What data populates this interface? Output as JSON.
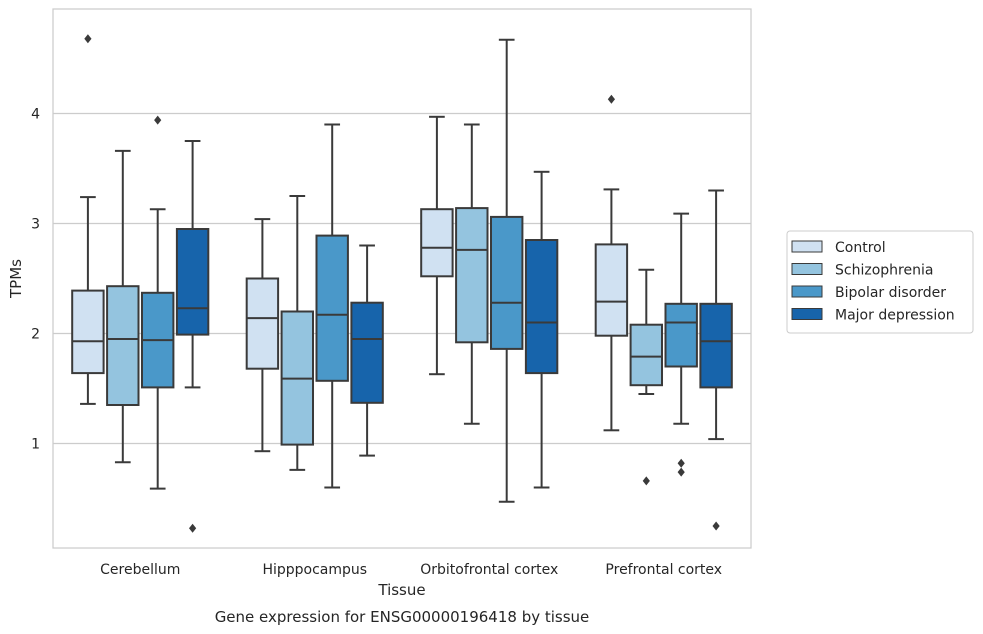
{
  "chart_data": {
    "type": "box",
    "title": "",
    "caption": "Gene expression for ENSG00000196418 by tissue",
    "xlabel": "Tissue",
    "ylabel": "TPMs",
    "ylim": [
      0.05,
      4.95
    ],
    "yticks": [
      1,
      2,
      3,
      4
    ],
    "grid": "horizontal",
    "legend_position": "right",
    "categories": [
      "Cerebellum",
      "Hipppocampus",
      "Orbitofrontal cortex",
      "Prefrontal cortex"
    ],
    "series": [
      {
        "name": "Control",
        "color": "#d0e1f2",
        "boxes": [
          {
            "whislo": 1.36,
            "q1": 1.64,
            "med": 1.93,
            "q3": 2.39,
            "whishi": 3.24,
            "fliers": [
              4.68
            ]
          },
          {
            "whislo": 0.93,
            "q1": 1.68,
            "med": 2.14,
            "q3": 2.5,
            "whishi": 3.04,
            "fliers": []
          },
          {
            "whislo": 1.63,
            "q1": 2.52,
            "med": 2.78,
            "q3": 3.13,
            "whishi": 3.97,
            "fliers": []
          },
          {
            "whislo": 1.12,
            "q1": 1.98,
            "med": 2.29,
            "q3": 2.81,
            "whishi": 3.31,
            "fliers": [
              4.13
            ]
          }
        ]
      },
      {
        "name": "Schizophrenia",
        "color": "#94c4df",
        "boxes": [
          {
            "whislo": 0.83,
            "q1": 1.35,
            "med": 1.95,
            "q3": 2.43,
            "whishi": 3.66,
            "fliers": []
          },
          {
            "whislo": 0.76,
            "q1": 0.99,
            "med": 1.59,
            "q3": 2.2,
            "whishi": 3.25,
            "fliers": []
          },
          {
            "whislo": 1.18,
            "q1": 1.92,
            "med": 2.76,
            "q3": 3.14,
            "whishi": 3.9,
            "fliers": []
          },
          {
            "whislo": 1.45,
            "q1": 1.53,
            "med": 1.79,
            "q3": 2.08,
            "whishi": 2.58,
            "fliers": [
              0.66
            ]
          }
        ]
      },
      {
        "name": "Bipolar disorder",
        "color": "#4a98c9",
        "boxes": [
          {
            "whislo": 0.59,
            "q1": 1.51,
            "med": 1.94,
            "q3": 2.37,
            "whishi": 3.13,
            "fliers": [
              3.94
            ]
          },
          {
            "whislo": 0.6,
            "q1": 1.57,
            "med": 2.17,
            "q3": 2.89,
            "whishi": 3.9,
            "fliers": []
          },
          {
            "whislo": 0.47,
            "q1": 1.86,
            "med": 2.28,
            "q3": 3.06,
            "whishi": 4.67,
            "fliers": []
          },
          {
            "whislo": 1.18,
            "q1": 1.7,
            "med": 2.1,
            "q3": 2.27,
            "whishi": 3.09,
            "fliers": [
              0.82,
              0.74
            ]
          }
        ]
      },
      {
        "name": "Major depression",
        "color": "#1764ab",
        "boxes": [
          {
            "whislo": 1.51,
            "q1": 1.99,
            "med": 2.23,
            "q3": 2.95,
            "whishi": 3.75,
            "fliers": [
              0.23
            ]
          },
          {
            "whislo": 0.89,
            "q1": 1.37,
            "med": 1.95,
            "q3": 2.28,
            "whishi": 2.8,
            "fliers": []
          },
          {
            "whislo": 0.6,
            "q1": 1.64,
            "med": 2.1,
            "q3": 2.85,
            "whishi": 3.47,
            "fliers": []
          },
          {
            "whislo": 1.04,
            "q1": 1.51,
            "med": 1.93,
            "q3": 2.27,
            "whishi": 3.3,
            "fliers": [
              0.25
            ]
          }
        ]
      }
    ]
  }
}
